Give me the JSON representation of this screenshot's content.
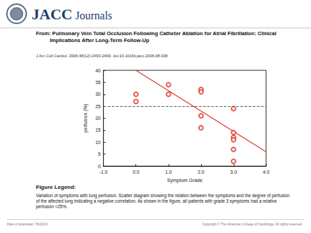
{
  "header": {
    "logo": "JACC",
    "logo_sub": "Journals",
    "title": "From: Pulmonary Vein Total Occlusion Following Catheter Ablation for Atrial Fibrillation: Clinical Implications After Long-Term Follow-Up",
    "citation": "J Am Coll Cardiol. 2006;48(12):2493-2499. doi:10.1016/j.jacc.2006.08.038"
  },
  "chart_data": {
    "type": "scatter",
    "x_label": "Symptom Grade",
    "y_label": "perfusion (%)",
    "x": [
      0,
      0,
      1,
      1,
      2,
      2,
      2,
      2,
      3,
      3,
      3,
      3,
      3,
      3
    ],
    "values": [
      30,
      27,
      34,
      30,
      32,
      31,
      21,
      16,
      24,
      14,
      12,
      11,
      7,
      2
    ],
    "color": "#e0312b",
    "marker": "open_circle",
    "trend": {
      "x": [
        0,
        4
      ],
      "values": [
        40,
        6
      ],
      "color": "#e0312b",
      "line_style": "solid"
    },
    "threshold": {
      "value": 25,
      "color": "#555555",
      "line_style": "dashed"
    },
    "xlim": [
      -1,
      4
    ],
    "xticks": [
      {
        "value": -1,
        "label": "-1.0"
      },
      {
        "value": 0,
        "label": "0.0"
      },
      {
        "value": 1,
        "label": "1.0"
      },
      {
        "value": 2,
        "label": "2.0"
      },
      {
        "value": 3,
        "label": "3.0"
      },
      {
        "value": 4,
        "label": "4.0"
      }
    ],
    "ylim": [
      0,
      40
    ],
    "yticks": [
      0,
      5,
      10,
      15,
      20,
      25,
      30,
      35,
      40
    ],
    "grid": false
  },
  "figure_legend": {
    "title": "Figure Legend:",
    "text": "Variation of symptoms with lung perfusion. Scatter diagram showing the relation between the symptoms and the degree of perfusion of the affected lung indicating a negative correlation. As shown in the figure, all patients with grade 3 symptoms had a relative perfusion <25%."
  },
  "footer": {
    "left": "Date of download: 7/6/2016",
    "right": "Copyright © The American College of Cardiology. All rights reserved."
  }
}
